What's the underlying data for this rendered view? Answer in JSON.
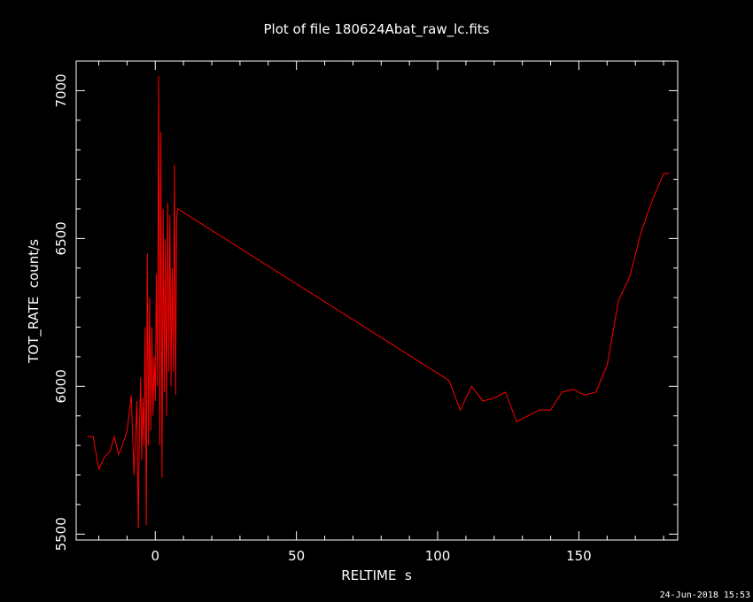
{
  "chart_data": {
    "type": "line",
    "title": "Plot of file 180624Abat_raw_lc.fits",
    "xlabel": "RELTIME  s",
    "ylabel": "TOT_RATE  count/s",
    "xlim": [
      -28,
      185
    ],
    "ylim": [
      5480,
      7100
    ],
    "xticks": [
      0,
      50,
      100,
      150
    ],
    "yticks": [
      5500,
      6000,
      6500,
      7000
    ],
    "grid": false,
    "series": [
      {
        "color": "#ff0000",
        "x": [
          -24,
          -22,
          -20,
          -18,
          -16,
          -14.5,
          -13,
          -12,
          -10,
          -8.5,
          -7.5,
          -6.5,
          -6,
          -5.6,
          -5.2,
          -4.8,
          -4.4,
          -4,
          -3.6,
          -3.2,
          -2.8,
          -2.4,
          -2,
          -1.6,
          -1.2,
          -0.8,
          -0.4,
          0,
          0.4,
          0.8,
          1.2,
          1.6,
          2,
          2.4,
          2.8,
          3.2,
          3.6,
          4,
          4.4,
          4.8,
          5.2,
          5.6,
          6,
          6.4,
          6.8,
          7.2,
          7.6,
          8,
          104,
          108,
          112,
          116,
          120,
          124,
          128,
          132,
          136,
          140,
          144,
          148,
          152,
          156,
          160,
          164,
          168,
          172,
          176,
          180,
          182
        ],
        "values": [
          5830,
          5830,
          5720,
          5760,
          5780,
          5830,
          5770,
          5790,
          5850,
          5970,
          5700,
          5950,
          5520,
          5850,
          6030,
          5750,
          5960,
          5800,
          6200,
          5530,
          6450,
          5800,
          6300,
          5850,
          6200,
          5900,
          6100,
          5950,
          6380,
          6000,
          7050,
          5800,
          6860,
          5690,
          6600,
          5980,
          6500,
          5900,
          6620,
          6050,
          6580,
          6000,
          6400,
          6050,
          6750,
          5970,
          6580,
          6600,
          6020,
          5920,
          6000,
          5950,
          5960,
          5980,
          5880,
          5900,
          5920,
          5920,
          5980,
          5990,
          5970,
          5980,
          6070,
          6290,
          6370,
          6520,
          6630,
          6720,
          6720
        ]
      }
    ]
  },
  "footer": {
    "timestamp": "24-Jun-2018 15:53"
  }
}
